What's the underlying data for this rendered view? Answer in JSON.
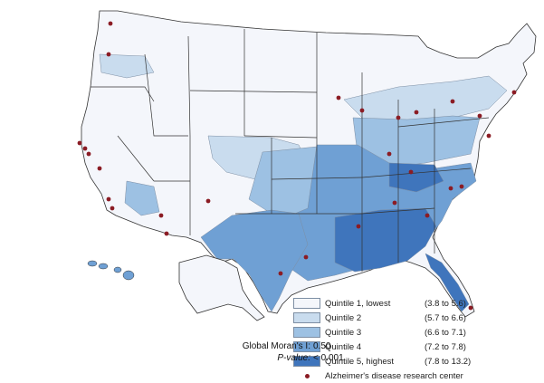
{
  "legend": {
    "items": [
      {
        "label": "Quintile 1, lowest",
        "range": "(3.8 to 5.6)",
        "color": "#f4f6fb"
      },
      {
        "label": "Quintile 2",
        "range": "(5.7 to 6.6)",
        "color": "#c9dcee"
      },
      {
        "label": "Quintile 3",
        "range": "(6.6 to 7.1)",
        "color": "#9dc1e3"
      },
      {
        "label": "Quintile 4",
        "range": "(7.2 to 7.8)",
        "color": "#6fa0d4"
      },
      {
        "label": "Quintile 5, highest",
        "range": "(7.8 to 13.2)",
        "color": "#3f75bc"
      }
    ],
    "center_label": "Alzheimer's disease research center",
    "center_color": "#8b1c24"
  },
  "stats": {
    "moran_label": "Global Moran's I:",
    "moran_value": "0.50",
    "p_label": "P-value:",
    "p_value": "< 0.001"
  }
}
